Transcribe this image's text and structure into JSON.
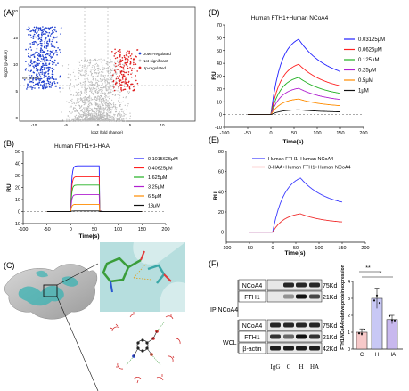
{
  "panels": {
    "A": "(A)",
    "B": "(B)",
    "C": "(C)",
    "D": "(D)",
    "E": "(E)",
    "F": "(F)"
  },
  "volcano": {
    "ylabel": "-log10 (p-value)",
    "xlabel": "log2 (fold change)",
    "xticks": [
      "-10",
      "-5",
      "0",
      "5",
      "10"
    ],
    "yticks": [
      "0",
      "5",
      "10",
      "15",
      "20"
    ],
    "legend": [
      "Down-regulated",
      "Not-significant",
      "Up-regulated"
    ],
    "annotation": "the_mRNA",
    "colors": {
      "down": "#1f3fcf",
      "ns": "#b8b8b8",
      "up": "#e02020"
    }
  },
  "chart_data": [
    {
      "type": "line",
      "title": "Human FTH1+3-HAA",
      "xlabel": "Time(s)",
      "ylabel": "RU",
      "xlim": [
        -100,
        200
      ],
      "ylim": [
        -10,
        50
      ],
      "xticks": [
        "-100",
        "-50",
        "0",
        "50",
        "100",
        "150",
        "200"
      ],
      "yticks": [
        "-10",
        "0",
        "10",
        "20",
        "30",
        "40",
        "50"
      ],
      "series": [
        {
          "name": "0.1015625μM",
          "color": "#1f1fff",
          "plateau": 38
        },
        {
          "name": "0.40625μM",
          "color": "#ff2020",
          "plateau": 29
        },
        {
          "name": "1.625μM",
          "color": "#22b022",
          "plateau": 22
        },
        {
          "name": "3.25μM",
          "color": "#b020d0",
          "plateau": 14
        },
        {
          "name": "6.5μM",
          "color": "#ff8c00",
          "plateau": 6
        },
        {
          "name": "13μM",
          "color": "#111111",
          "plateau": 0.5
        }
      ]
    },
    {
      "type": "line",
      "title": "Human FTH1+Human NCoA4",
      "xlabel": "Time(s)",
      "ylabel": "RU",
      "xlim": [
        -100,
        200
      ],
      "ylim": [
        -10,
        70
      ],
      "xticks": [
        "-100",
        "-50",
        "0",
        "50",
        "100",
        "150",
        "200"
      ],
      "yticks": [
        "-10",
        "0",
        "10",
        "20",
        "30",
        "40",
        "50",
        "60",
        "70"
      ],
      "series": [
        {
          "name": "0.03125μM",
          "color": "#1f1fff",
          "plateau": 63
        },
        {
          "name": "0.0625μM",
          "color": "#ff2020",
          "plateau": 42
        },
        {
          "name": "0.125μM",
          "color": "#22b022",
          "plateau": 31
        },
        {
          "name": "0.25μM",
          "color": "#b020d0",
          "plateau": 22
        },
        {
          "name": "0.5μM",
          "color": "#ff8c00",
          "plateau": 13
        },
        {
          "name": "1μM",
          "color": "#111111",
          "plateau": 4
        }
      ]
    },
    {
      "type": "line",
      "title": "",
      "xlabel": "Time(s)",
      "ylabel": "RU",
      "xlim": [
        -100,
        200
      ],
      "ylim": [
        -10,
        80
      ],
      "xticks": [
        "-100",
        "-50",
        "0",
        "50",
        "100",
        "150",
        "200"
      ],
      "yticks": [
        "-20",
        "0",
        "20",
        "40",
        "60",
        "80"
      ],
      "series": [
        {
          "name": "Human FTH1+Human NCoA4",
          "color": "#3b3bff",
          "plateau": 59
        },
        {
          "name": "3-HAA+Human FTH1+Human NCoA4",
          "color": "#f03030",
          "plateau": 20
        }
      ]
    },
    {
      "type": "bar",
      "title": "",
      "xlabel": "",
      "ylabel": "FTH1/NCoA4 relative protein expression",
      "categories": [
        "C",
        "H",
        "HA"
      ],
      "values": [
        1.0,
        3.0,
        1.75
      ],
      "errors": [
        0.2,
        0.6,
        0.25
      ],
      "colors": [
        "#f7c9c9",
        "#c8c8f5",
        "#c8b8ee"
      ],
      "ylim": [
        0,
        4
      ],
      "yticks": [
        "0",
        "1",
        "2",
        "3",
        "4"
      ],
      "significance": [
        "**",
        "*"
      ]
    }
  ],
  "western": {
    "ip_label": "IP:NCoA4",
    "wcl_label": "WCL",
    "rows": [
      "NCoA4",
      "FTH1",
      "NCoA4",
      "FTH1",
      "β-actin"
    ],
    "sizes": [
      "75Kd",
      "21Kd",
      "75Kd",
      "21Kd",
      "42Kd"
    ],
    "lanes": [
      "IgG",
      "C",
      "H",
      "HA"
    ]
  }
}
